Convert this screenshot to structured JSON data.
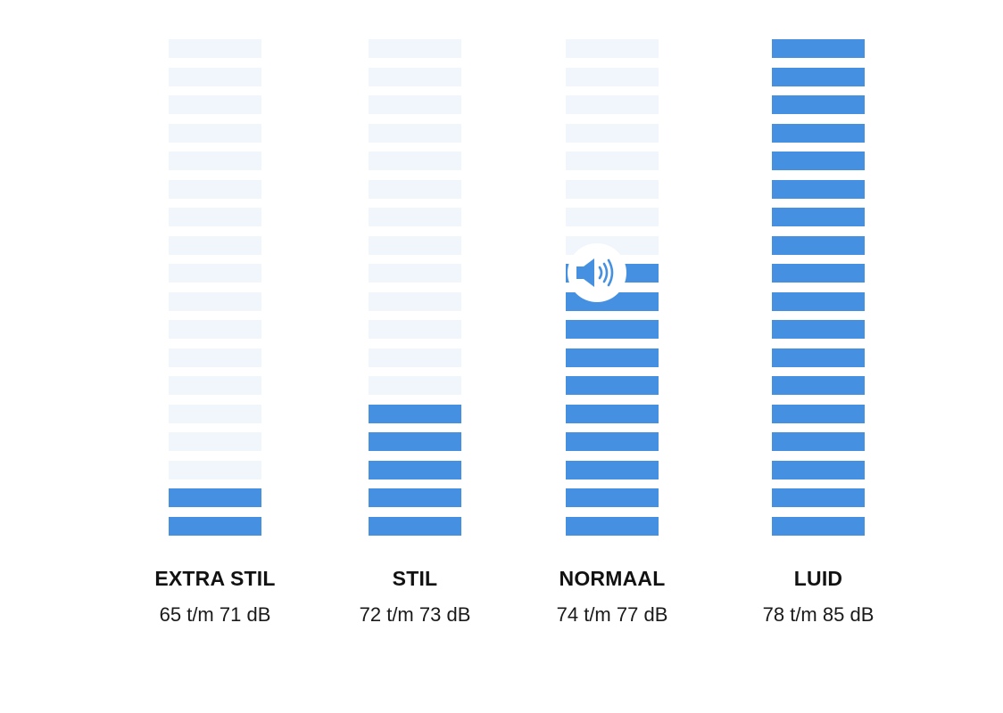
{
  "levels": [
    {
      "title": "EXTRA STIL",
      "range": "65 t/m 71 dB",
      "filled_segments": 2,
      "total_segments": 18
    },
    {
      "title": "STIL",
      "range": "72 t/m 73 dB",
      "filled_segments": 5,
      "total_segments": 18
    },
    {
      "title": "NORMAAL",
      "range": "74 t/m 77 dB",
      "filled_segments": 10,
      "total_segments": 18
    },
    {
      "title": "LUID",
      "range": "78 t/m 85 dB",
      "filled_segments": 18,
      "total_segments": 18
    }
  ],
  "indicator": {
    "icon": "speaker-volume-icon",
    "level_index": 2
  },
  "colors": {
    "active": "#4590e0",
    "inactive": "#f1f6fd",
    "text": "#121212"
  }
}
